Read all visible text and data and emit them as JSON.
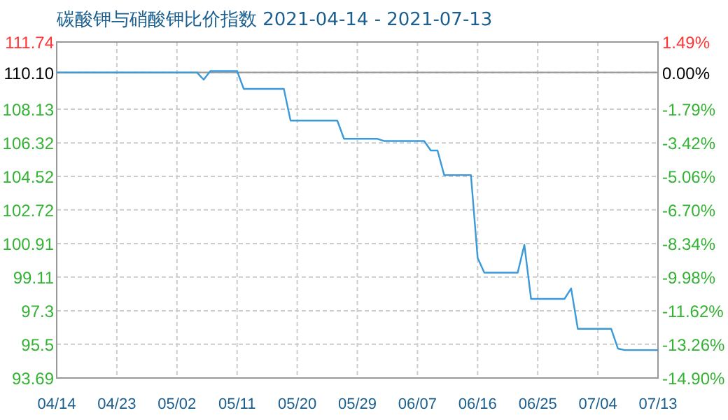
{
  "chart_data": {
    "type": "line",
    "title": "碳酸钾与硝酸钾比价指数 2021-04-14 - 2021-07-13",
    "x": [
      "2021-04-14",
      "2021-05-05",
      "2021-05-06",
      "2021-05-07",
      "2021-05-11",
      "2021-05-12",
      "2021-05-18",
      "2021-05-19",
      "2021-05-26",
      "2021-05-27",
      "2021-06-01",
      "2021-06-02",
      "2021-06-08",
      "2021-06-09",
      "2021-06-10",
      "2021-06-11",
      "2021-06-15",
      "2021-06-16",
      "2021-06-17",
      "2021-06-22",
      "2021-06-23",
      "2021-06-24",
      "2021-06-29",
      "2021-06-30",
      "2021-07-01",
      "2021-07-06",
      "2021-07-07",
      "2021-07-08",
      "2021-07-13"
    ],
    "series": [
      {
        "color": "#3a9ad9",
        "values": [
          110.1,
          110.1,
          109.72,
          110.18,
          110.18,
          109.22,
          109.22,
          107.52,
          107.52,
          106.54,
          106.54,
          106.42,
          106.42,
          105.91,
          105.91,
          104.59,
          104.59,
          100.15,
          99.35,
          99.35,
          100.85,
          97.94,
          97.94,
          98.5,
          96.33,
          96.33,
          95.27,
          95.19,
          95.19
        ]
      }
    ],
    "xlim": [
      "2021-04-14",
      "2021-07-13"
    ],
    "xticks": [
      {
        "value": "2021-04-14",
        "label": "04/14"
      },
      {
        "value": "2021-04-23",
        "label": "04/23"
      },
      {
        "value": "2021-05-02",
        "label": "05/02"
      },
      {
        "value": "2021-05-11",
        "label": "05/11"
      },
      {
        "value": "2021-05-20",
        "label": "05/20"
      },
      {
        "value": "2021-05-29",
        "label": "05/29"
      },
      {
        "value": "2021-06-07",
        "label": "06/07"
      },
      {
        "value": "2021-06-16",
        "label": "06/16"
      },
      {
        "value": "2021-06-25",
        "label": "06/25"
      },
      {
        "value": "2021-07-04",
        "label": "07/04"
      },
      {
        "value": "2021-07-13",
        "label": "07/13"
      }
    ],
    "ylim": [
      93.69,
      111.74
    ],
    "yticks": [
      93.69,
      95.5,
      97.3,
      99.11,
      100.91,
      102.72,
      104.52,
      106.32,
      108.13,
      {
        "value": 110.1,
        "label": "110.10"
      },
      111.74
    ],
    "y2lim": [
      -14.9,
      1.49
    ],
    "y2ticks": [
      {
        "value": -14.9,
        "label": "-14.90%"
      },
      {
        "value": -13.26,
        "label": "-13.26%"
      },
      {
        "value": -11.62,
        "label": "-11.62%"
      },
      {
        "value": -9.98,
        "label": "-9.98%"
      },
      {
        "value": -8.34,
        "label": "-8.34%"
      },
      {
        "value": -6.7,
        "label": "-6.70%"
      },
      {
        "value": -5.06,
        "label": "-5.06%"
      },
      {
        "value": -3.42,
        "label": "-3.42%"
      },
      {
        "value": -1.79,
        "label": "-1.79%"
      },
      {
        "value": 0,
        "label": "0.00%"
      },
      {
        "value": 1.49,
        "label": "1.49%"
      }
    ],
    "ref_lines": [
      {
        "axis": "y",
        "value": 110.1,
        "color": "#999999"
      }
    ],
    "grid": true
  }
}
